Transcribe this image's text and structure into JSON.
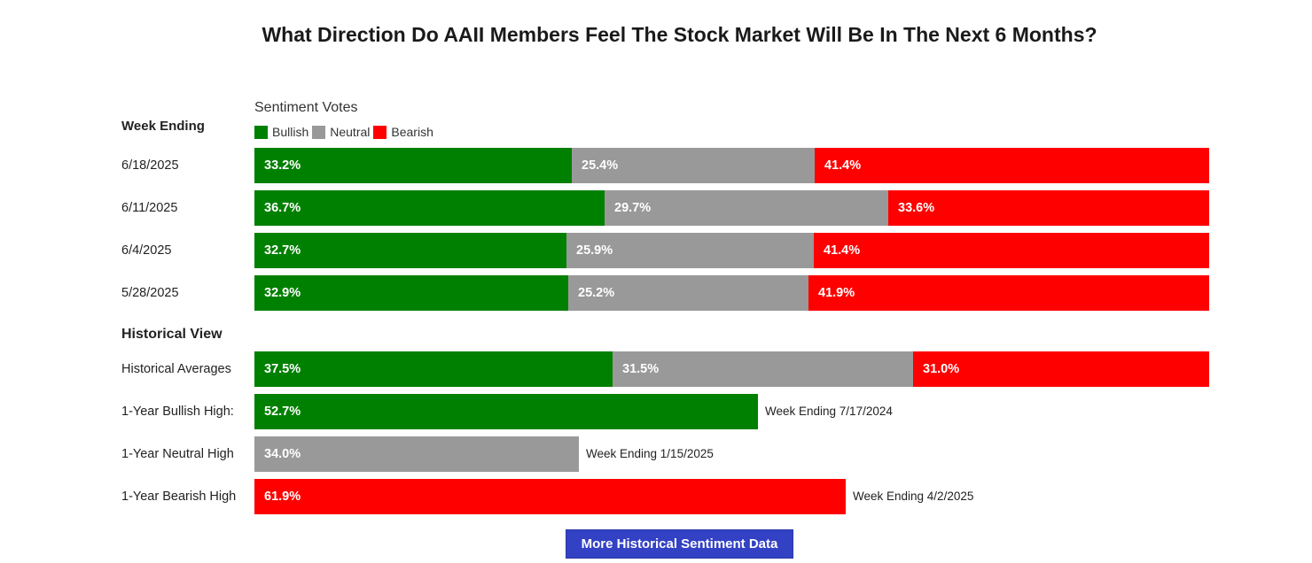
{
  "title": "What Direction Do AAII Members Feel The Stock Market Will Be In The Next 6 Months?",
  "legend": {
    "title": "Sentiment Votes",
    "items": [
      {
        "label": "Bullish",
        "color": "#008000"
      },
      {
        "label": "Neutral",
        "color": "#999999"
      },
      {
        "label": "Bearish",
        "color": "#ff0000"
      }
    ]
  },
  "week_heading": "Week Ending",
  "historical_heading": "Historical View",
  "cta_label": "More Historical Sentiment Data",
  "chart_data": {
    "type": "bar",
    "title": "What Direction Do AAII Members Feel The Stock Market Will Be In The Next 6 Months?",
    "orientation": "horizontal-stacked",
    "weekly": [
      {
        "label": "6/18/2025",
        "bullish": 33.2,
        "neutral": 25.4,
        "bearish": 41.4,
        "bullish_label": "33.2%",
        "neutral_label": "25.4%",
        "bearish_label": "41.4%"
      },
      {
        "label": "6/11/2025",
        "bullish": 36.7,
        "neutral": 29.7,
        "bearish": 33.6,
        "bullish_label": "36.7%",
        "neutral_label": "29.7%",
        "bearish_label": "33.6%"
      },
      {
        "label": "6/4/2025",
        "bullish": 32.7,
        "neutral": 25.9,
        "bearish": 41.4,
        "bullish_label": "32.7%",
        "neutral_label": "25.9%",
        "bearish_label": "41.4%"
      },
      {
        "label": "5/28/2025",
        "bullish": 32.9,
        "neutral": 25.2,
        "bearish": 41.9,
        "bullish_label": "32.9%",
        "neutral_label": "25.2%",
        "bearish_label": "41.9%"
      }
    ],
    "historical_average": {
      "label": "Historical Averages",
      "bullish": 37.5,
      "neutral": 31.5,
      "bearish": 31.0,
      "bullish_label": "37.5%",
      "neutral_label": "31.5%",
      "bearish_label": "31.0%"
    },
    "one_year_highs": [
      {
        "label": "1-Year Bullish High:",
        "series": "bullish",
        "value": 52.7,
        "value_label": "52.7%",
        "note": "Week Ending 7/17/2024"
      },
      {
        "label": "1-Year Neutral High",
        "series": "neutral",
        "value": 34.0,
        "value_label": "34.0%",
        "note": "Week Ending 1/15/2025"
      },
      {
        "label": "1-Year Bearish High",
        "series": "bearish",
        "value": 61.9,
        "value_label": "61.9%",
        "note": "Week Ending 4/2/2025"
      }
    ],
    "colors": {
      "bullish": "#008000",
      "neutral": "#999999",
      "bearish": "#ff0000"
    },
    "xlim": [
      0,
      100
    ]
  }
}
